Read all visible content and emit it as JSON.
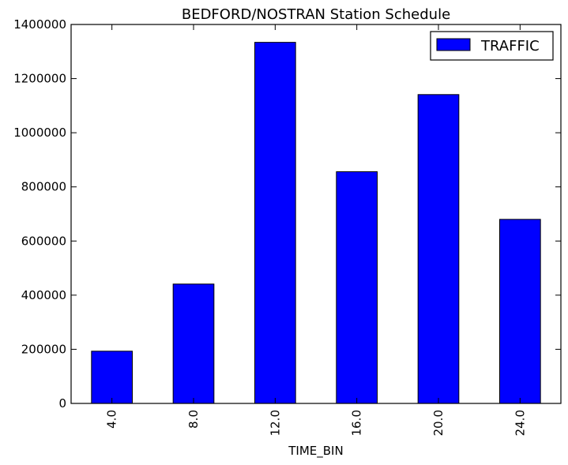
{
  "chart_data": {
    "type": "bar",
    "title": "BEDFORD/NOSTRAN Station Schedule",
    "xlabel": "TIME_BIN",
    "ylabel": "",
    "categories": [
      "4.0",
      "8.0",
      "12.0",
      "16.0",
      "20.0",
      "24.0"
    ],
    "series": [
      {
        "name": "TRAFFIC",
        "color": "#0000ff",
        "values": [
          193000,
          441000,
          1334000,
          856000,
          1141000,
          680000
        ]
      }
    ],
    "ylim": [
      0,
      1400000
    ],
    "yticks": [
      0,
      200000,
      400000,
      600000,
      800000,
      1000000,
      1200000,
      1400000
    ],
    "ytick_labels": [
      "0",
      "200000",
      "400000",
      "600000",
      "800000",
      "1000000",
      "1200000",
      "1400000"
    ],
    "grid": false,
    "legend": "top-right"
  }
}
